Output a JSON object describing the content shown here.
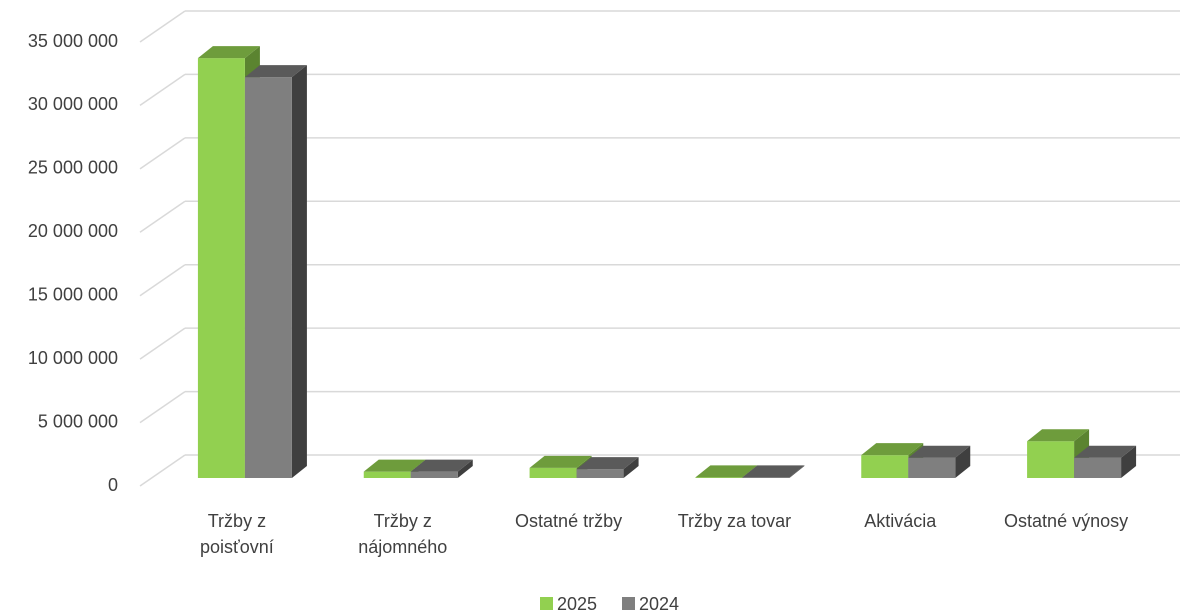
{
  "chart_data": {
    "type": "bar3d",
    "categories": [
      "Tržby z\npoisťovní",
      "Tržby z\nnájomného",
      "Ostatné tržby",
      "Tržby za tovar",
      "Aktivácia",
      "Ostatné výnosy"
    ],
    "series": [
      {
        "name": "2025",
        "color": "#92d050",
        "values": [
          33100000,
          500000,
          800000,
          50000,
          1800000,
          2900000
        ]
      },
      {
        "name": "2024",
        "color": "#7f7f7f",
        "values": [
          31600000,
          500000,
          700000,
          50000,
          1600000,
          1600000
        ]
      }
    ],
    "ylim": [
      0,
      35000000
    ],
    "yticks": [
      {
        "value": 0,
        "label": "0"
      },
      {
        "value": 5000000,
        "label": "5 000 000"
      },
      {
        "value": 10000000,
        "label": "10 000 000"
      },
      {
        "value": 15000000,
        "label": "15 000 000"
      },
      {
        "value": 20000000,
        "label": "20 000 000"
      },
      {
        "value": 25000000,
        "label": "25 000 000"
      },
      {
        "value": 30000000,
        "label": "30 000 000"
      },
      {
        "value": 35000000,
        "label": "35 000 000"
      }
    ],
    "grid": true,
    "legend": "bottom"
  }
}
